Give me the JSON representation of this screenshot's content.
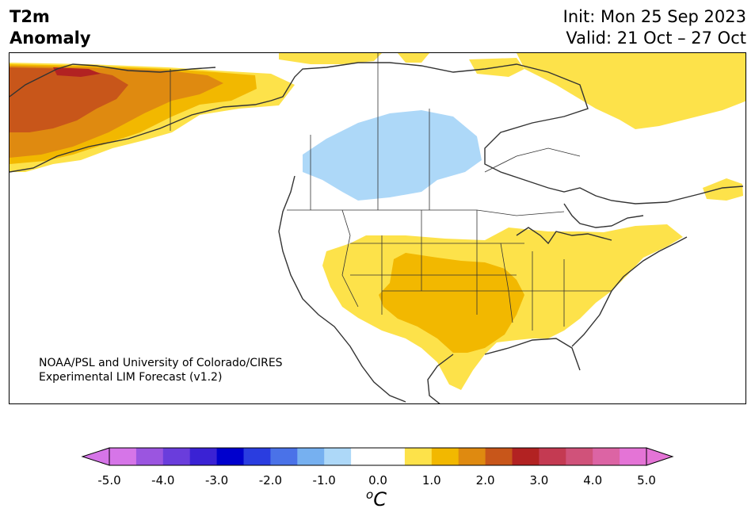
{
  "title": {
    "line1": "T2m",
    "line2": "Anomaly"
  },
  "init_label": "Init: Mon 25 Sep 2023",
  "valid_label": "Valid: 21 Oct – 27 Oct",
  "credit": {
    "line1": "NOAA/PSL and University of Colorado/CIRES",
    "line2": "Experimental LIM Forecast (v1.2)"
  },
  "colorbar": {
    "unit_base": "C",
    "unit_sup": "o",
    "ticks": [
      "-5.0",
      "-4.0",
      "-3.0",
      "-2.0",
      "-1.0",
      "0.0",
      "1.0",
      "2.0",
      "3.0",
      "4.0",
      "5.0"
    ],
    "colors": [
      "#d675e8",
      "#9b55e0",
      "#6a3ddc",
      "#3a22d4",
      "#0000cd",
      "#2a3de0",
      "#4a72e8",
      "#76b0f0",
      "#add8f8",
      "#ffffff",
      "#ffffff",
      "#fde24a",
      "#f2b800",
      "#df8a10",
      "#c8561a",
      "#b22222",
      "#c43a52",
      "#d0527a",
      "#dc64a4",
      "#e474d6"
    ],
    "under_color": "#d675e8",
    "over_color": "#e474d6"
  },
  "colors": {
    "anomaly_pos_05": "#fde24a",
    "anomaly_pos_10": "#f2b800",
    "anomaly_pos_15": "#df8a10",
    "anomaly_pos_20": "#c8561a",
    "anomaly_pos_25": "#b22222",
    "anomaly_neg_05": "#add8f8",
    "coastline": "#333333"
  }
}
